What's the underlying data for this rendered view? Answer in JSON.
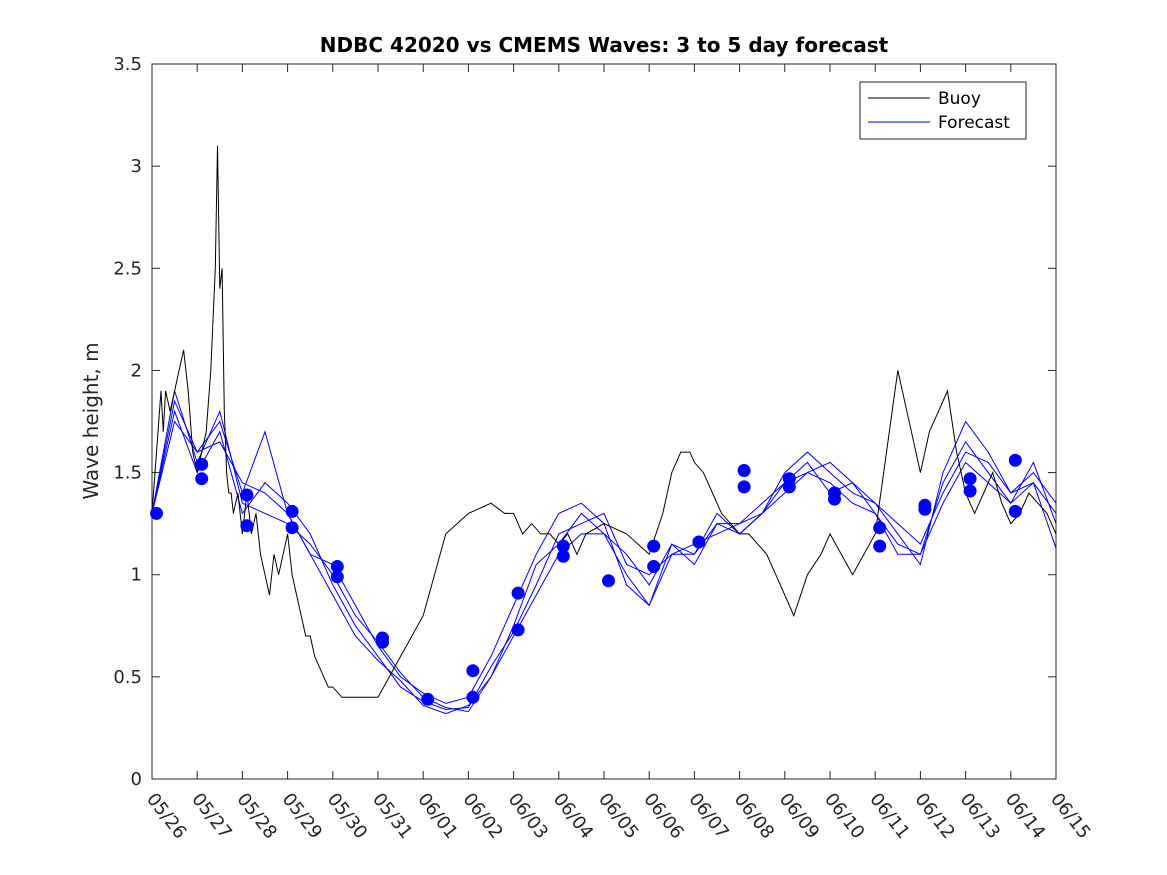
{
  "chart_data": {
    "type": "line",
    "title": "NDBC 42020 vs CMEMS Waves: 3 to 5 day forecast",
    "xlabel": "",
    "ylabel": "Wave height, m",
    "x_ticks": [
      "05/26",
      "05/27",
      "05/28",
      "05/29",
      "05/30",
      "05/31",
      "06/01",
      "06/02",
      "06/03",
      "06/04",
      "06/05",
      "06/06",
      "06/07",
      "06/08",
      "06/09",
      "06/10",
      "06/11",
      "06/12",
      "06/13",
      "06/14",
      "06/15"
    ],
    "x_range_days": [
      0,
      20
    ],
    "y_ticks": [
      "0",
      "0.5",
      "1",
      "1.5",
      "2",
      "2.5",
      "3",
      "3.5"
    ],
    "ylim": [
      0,
      3.5
    ],
    "legend": {
      "position": "top-right",
      "entries": [
        {
          "label": "Buoy",
          "color": "#000000"
        },
        {
          "label": "Forecast",
          "color": "#0000ff"
        }
      ]
    },
    "colors": {
      "buoy": "#000000",
      "forecast": "#0000ff",
      "markers": "#0000ff"
    },
    "series": [
      {
        "name": "Buoy",
        "x": [
          0,
          0.2,
          0.25,
          0.3,
          0.4,
          0.5,
          0.6,
          0.7,
          0.8,
          0.9,
          1.0,
          1.1,
          1.2,
          1.3,
          1.4,
          1.45,
          1.5,
          1.55,
          1.6,
          1.65,
          1.7,
          1.75,
          1.8,
          1.9,
          2.0,
          2.1,
          2.2,
          2.3,
          2.4,
          2.5,
          2.6,
          2.7,
          2.8,
          2.9,
          3.0,
          3.1,
          3.2,
          3.3,
          3.4,
          3.5,
          3.6,
          3.8,
          3.9,
          4.0,
          4.2,
          4.4,
          4.6,
          5.0,
          5.5,
          6.0,
          6.5,
          7.0,
          7.5,
          7.8,
          8.0,
          8.2,
          8.4,
          8.6,
          8.8,
          9.0,
          9.2,
          9.4,
          9.6,
          10.0,
          10.5,
          11.0,
          11.3,
          11.5,
          11.7,
          11.9,
          12.0,
          12.2,
          12.4,
          12.6,
          12.8,
          13.0,
          13.2,
          13.4,
          13.6,
          13.8,
          14.0,
          14.2,
          14.5,
          14.8,
          15.0,
          15.5,
          16.0,
          16.5,
          16.8,
          17.0,
          17.2,
          17.4,
          17.6,
          17.8,
          18.0,
          18.2,
          18.4,
          18.6,
          18.8,
          19.0,
          19.2,
          19.4,
          19.6,
          19.8,
          20.0
        ],
        "y": [
          1.3,
          1.9,
          1.7,
          1.9,
          1.8,
          1.9,
          2.0,
          2.1,
          1.9,
          1.6,
          1.5,
          1.6,
          1.7,
          2.0,
          2.5,
          3.1,
          2.4,
          2.5,
          1.8,
          1.5,
          1.4,
          1.4,
          1.3,
          1.4,
          1.2,
          1.4,
          1.2,
          1.3,
          1.1,
          1.0,
          0.9,
          1.1,
          1.0,
          1.1,
          1.2,
          1.0,
          0.9,
          0.8,
          0.7,
          0.7,
          0.6,
          0.5,
          0.45,
          0.45,
          0.4,
          0.4,
          0.4,
          0.4,
          0.6,
          0.8,
          1.2,
          1.3,
          1.35,
          1.3,
          1.3,
          1.2,
          1.25,
          1.2,
          1.2,
          1.15,
          1.2,
          1.1,
          1.2,
          1.25,
          1.2,
          1.1,
          1.3,
          1.5,
          1.6,
          1.6,
          1.55,
          1.5,
          1.4,
          1.3,
          1.25,
          1.2,
          1.2,
          1.15,
          1.1,
          1.0,
          0.9,
          0.8,
          1.0,
          1.1,
          1.2,
          1.0,
          1.2,
          2.0,
          1.7,
          1.5,
          1.7,
          1.8,
          1.9,
          1.6,
          1.4,
          1.3,
          1.4,
          1.5,
          1.35,
          1.25,
          1.3,
          1.4,
          1.35,
          1.3,
          1.2
        ]
      },
      {
        "name": "Forecast",
        "x": [
          0,
          0.5,
          1.0,
          1.5,
          2.0,
          2.5,
          3.0,
          3.5,
          4.0,
          4.5,
          5.0,
          5.5,
          6.0,
          6.5,
          7.0,
          7.5,
          8.0,
          8.5,
          9.0,
          9.5,
          10.0,
          10.5,
          11.0,
          11.5,
          12.0,
          12.5,
          13.0,
          13.5,
          14.0,
          14.5,
          15.0,
          15.5,
          16.0,
          16.5,
          17.0,
          17.5,
          18.0,
          18.5,
          19.0,
          19.5,
          20.0
        ],
        "y": [
          1.3,
          1.9,
          1.55,
          1.8,
          1.35,
          1.3,
          1.25,
          1.15,
          1.0,
          0.8,
          0.67,
          0.52,
          0.4,
          0.35,
          0.33,
          0.5,
          0.75,
          1.05,
          1.15,
          1.3,
          1.2,
          1.1,
          0.95,
          1.15,
          1.1,
          1.25,
          1.2,
          1.3,
          1.45,
          1.5,
          1.55,
          1.45,
          1.35,
          1.25,
          1.15,
          1.4,
          1.6,
          1.55,
          1.4,
          1.45,
          1.3
        ]
      }
    ],
    "forecast_variants": [
      {
        "offset": 0.1,
        "x": [
          0,
          0.5,
          1.0,
          1.5,
          2.0,
          2.5,
          3.0,
          3.5,
          4.0,
          4.5,
          5.0,
          5.5,
          6.0,
          6.5,
          7.0,
          7.5,
          8.0,
          8.5,
          9.0,
          9.5,
          10.0,
          10.5,
          11.0,
          11.5,
          12.0,
          12.5,
          13.0,
          13.5,
          14.0,
          14.5,
          15.0,
          15.5,
          16.0,
          16.5,
          17.0,
          17.5,
          18.0,
          18.5,
          19.0,
          19.5,
          20.0
        ],
        "y": [
          1.3,
          1.85,
          1.6,
          1.75,
          1.4,
          1.7,
          1.3,
          1.1,
          1.05,
          0.85,
          0.65,
          0.5,
          0.42,
          0.37,
          0.4,
          0.6,
          0.85,
          1.1,
          1.3,
          1.35,
          1.25,
          0.95,
          0.85,
          1.15,
          1.05,
          1.25,
          1.25,
          1.3,
          1.5,
          1.6,
          1.5,
          1.4,
          1.35,
          1.2,
          1.05,
          1.5,
          1.75,
          1.6,
          1.4,
          1.5,
          1.35
        ]
      },
      {
        "offset": 0.2,
        "x": [
          0,
          0.5,
          1.0,
          1.5,
          2.0,
          2.5,
          3.0,
          3.5,
          4.0,
          4.5,
          5.0,
          5.5,
          6.0,
          6.5,
          7.0,
          7.5,
          8.0,
          8.5,
          9.0,
          9.5,
          10.0,
          10.5,
          11.0,
          11.5,
          12.0,
          12.5,
          13.0,
          13.5,
          14.0,
          14.5,
          15.0,
          15.5,
          16.0,
          16.5,
          17.0,
          17.5,
          18.0,
          18.5,
          19.0,
          19.5,
          20.0
        ],
        "y": [
          1.3,
          1.8,
          1.5,
          1.7,
          1.3,
          1.45,
          1.35,
          1.2,
          0.95,
          0.75,
          0.6,
          0.45,
          0.38,
          0.34,
          0.35,
          0.55,
          0.72,
          0.95,
          1.2,
          1.25,
          1.3,
          1.05,
          1.0,
          1.1,
          1.15,
          1.2,
          1.25,
          1.35,
          1.45,
          1.55,
          1.4,
          1.45,
          1.3,
          1.15,
          1.1,
          1.45,
          1.65,
          1.5,
          1.35,
          1.55,
          1.25
        ]
      },
      {
        "offset": 0.3,
        "x": [
          0,
          0.5,
          1.0,
          1.5,
          2.0,
          2.5,
          3.0,
          3.5,
          4.0,
          4.5,
          5.0,
          5.5,
          6.0,
          6.5,
          7.0,
          7.5,
          8.0,
          8.5,
          9.0,
          9.5,
          10.0,
          10.5,
          11.0,
          11.5,
          12.0,
          12.5,
          13.0,
          13.5,
          14.0,
          14.5,
          15.0,
          15.5,
          16.0,
          16.5,
          17.0,
          17.5,
          18.0,
          18.5,
          19.0,
          19.5,
          20.0
        ],
        "y": [
          1.3,
          1.75,
          1.6,
          1.65,
          1.45,
          1.4,
          1.3,
          1.1,
          0.9,
          0.7,
          0.58,
          0.48,
          0.36,
          0.32,
          0.36,
          0.5,
          0.7,
          0.9,
          1.1,
          1.2,
          1.2,
          1.0,
          0.85,
          1.1,
          1.1,
          1.3,
          1.2,
          1.3,
          1.4,
          1.5,
          1.45,
          1.35,
          1.3,
          1.1,
          1.1,
          1.35,
          1.55,
          1.45,
          1.35,
          1.45,
          1.13
        ]
      }
    ],
    "markers": {
      "x": [
        0.1,
        1.1,
        1.1,
        2.1,
        2.1,
        3.1,
        3.1,
        4.1,
        4.1,
        5.1,
        5.1,
        6.1,
        7.1,
        7.1,
        8.1,
        8.1,
        9.1,
        9.1,
        10.1,
        11.1,
        11.1,
        12.1,
        13.1,
        13.1,
        14.1,
        14.1,
        15.1,
        15.1,
        16.1,
        16.1,
        17.1,
        17.1,
        18.1,
        18.1,
        19.1,
        19.1
      ],
      "y": [
        1.3,
        1.54,
        1.47,
        1.39,
        1.24,
        1.31,
        1.23,
        1.04,
        0.99,
        0.69,
        0.67,
        0.39,
        0.53,
        0.4,
        0.91,
        0.73,
        1.14,
        1.09,
        0.97,
        1.14,
        1.04,
        1.16,
        1.51,
        1.43,
        1.47,
        1.43,
        1.4,
        1.37,
        1.23,
        1.14,
        1.34,
        1.32,
        1.47,
        1.41,
        1.56,
        1.31
      ]
    }
  }
}
